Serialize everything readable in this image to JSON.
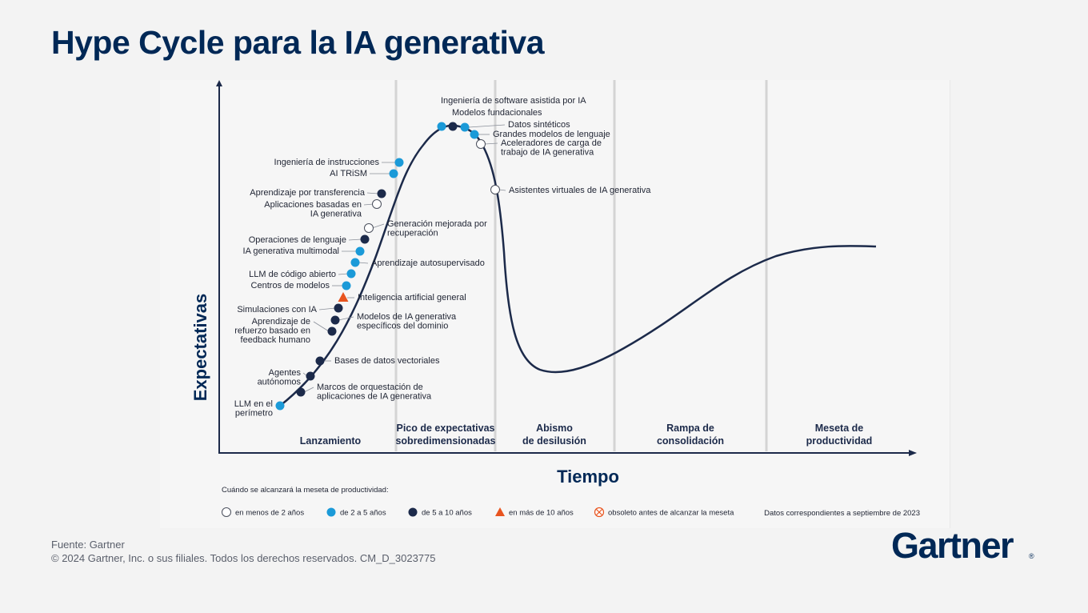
{
  "title": "Hype Cycle para la IA generativa",
  "axes": {
    "y": "Expectativas",
    "x": "Tiempo"
  },
  "colors": {
    "lt2": "#ffffff",
    "y2to5": "#1b9ad8",
    "y5to10": "#1c2a4a",
    "gt10": "#e8541f",
    "curve": "#1c2a4a",
    "title": "#002856"
  },
  "phases": [
    {
      "l1": "Lanzamiento",
      "l2": ""
    },
    {
      "l1": "Pico de expectativas",
      "l2": "sobredimensionadas"
    },
    {
      "l1": "Abismo",
      "l2": "de desilusión"
    },
    {
      "l1": "Rampa de",
      "l2": "consolidación"
    },
    {
      "l1": "Meseta de",
      "l2": "productividad"
    }
  ],
  "technologies": [
    {
      "l1": "LLM en el",
      "l2": "perímetro",
      "cat": "y2to5"
    },
    {
      "l1": "Marcos de orquestación de",
      "l2": "aplicaciones de IA generativa",
      "cat": "y5to10"
    },
    {
      "l1": "Agentes",
      "l2": "autónomos",
      "cat": "y5to10"
    },
    {
      "l1": "Bases de datos vectoriales",
      "l2": "",
      "cat": "y5to10"
    },
    {
      "l1": "Aprendizaje de",
      "l2": "refuerzo basado en",
      "l3": "feedback humano",
      "cat": "y5to10"
    },
    {
      "l1": "Modelos de IA generativa",
      "l2": "específicos del dominio",
      "cat": "y5to10"
    },
    {
      "l1": "Simulaciones con IA",
      "l2": "",
      "cat": "y5to10"
    },
    {
      "l1": "Inteligencia artificial general",
      "l2": "",
      "cat": "gt10"
    },
    {
      "l1": "Centros de modelos",
      "l2": "",
      "cat": "y2to5"
    },
    {
      "l1": "LLM de código abierto",
      "l2": "",
      "cat": "y2to5"
    },
    {
      "l1": "Aprendizaje autosupervisado",
      "l2": "",
      "cat": "y2to5"
    },
    {
      "l1": "IA generativa multimodal",
      "l2": "",
      "cat": "y2to5"
    },
    {
      "l1": "Operaciones de lenguaje",
      "l2": "",
      "cat": "y5to10"
    },
    {
      "l1": "Generación mejorada por",
      "l2": "recuperación",
      "cat": "lt2"
    },
    {
      "l1": "Aplicaciones basadas en",
      "l2": "IA generativa",
      "cat": "lt2"
    },
    {
      "l1": "Aprendizaje por transferencia",
      "l2": "",
      "cat": "y5to10"
    },
    {
      "l1": "AI TRiSM",
      "l2": "",
      "cat": "y2to5"
    },
    {
      "l1": "Ingeniería de instrucciones",
      "l2": "",
      "cat": "y2to5"
    },
    {
      "l1": "Ingeniería de software asistida por IA",
      "l2": "",
      "cat": "y2to5"
    },
    {
      "l1": "Modelos fundacionales",
      "l2": "",
      "cat": "y5to10"
    },
    {
      "l1": "Datos sintéticos",
      "l2": "",
      "cat": "y2to5"
    },
    {
      "l1": "Grandes modelos de lenguaje",
      "l2": "",
      "cat": "y2to5"
    },
    {
      "l1": "Aceleradores de carga de",
      "l2": "trabajo de IA generativa",
      "cat": "lt2"
    },
    {
      "l1": "Asistentes virtuales de IA generativa",
      "l2": "",
      "cat": "lt2"
    }
  ],
  "legend": {
    "title": "Cuándo se alcanzará la meseta de productividad:",
    "items": [
      {
        "label": "en menos de 2 años",
        "cat": "lt2"
      },
      {
        "label": "de 2 a 5 años",
        "cat": "y2to5"
      },
      {
        "label": "de 5 a 10 años",
        "cat": "y5to10"
      },
      {
        "label": "en más de 10 años",
        "cat": "gt10"
      },
      {
        "label": "obsoleto antes de alcanzar la meseta",
        "cat": "obsolete"
      }
    ],
    "note": "Datos correspondientes a septiembre de 2023"
  },
  "footer": {
    "source": "Fuente: Gartner",
    "copyright": "© 2024 Gartner, Inc. o sus filiales. Todos los derechos reservados. CM_D_3023775"
  },
  "logo": "Gartner"
}
